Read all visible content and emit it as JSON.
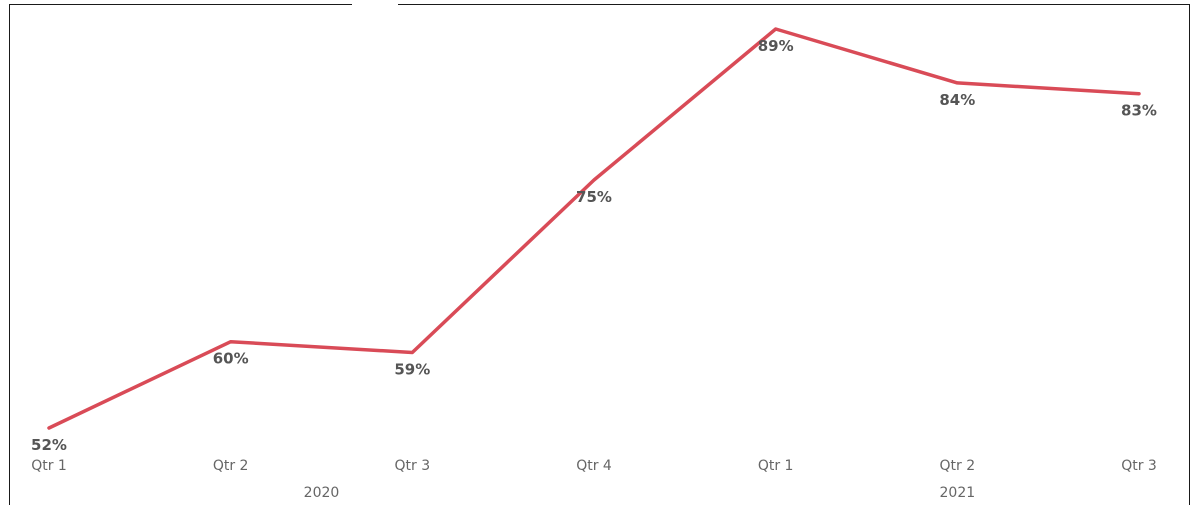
{
  "chart_data": {
    "type": "line",
    "x": [
      "Qtr 1",
      "Qtr 2",
      "Qtr 3",
      "Qtr 4",
      "Qtr 1",
      "Qtr 2",
      "Qtr 3"
    ],
    "x_groups": [
      {
        "label": "2020",
        "span": [
          0,
          3
        ]
      },
      {
        "label": "2021",
        "span": [
          4,
          6
        ]
      }
    ],
    "series": [
      {
        "values": [
          52,
          60,
          59,
          75,
          89,
          84,
          83
        ],
        "data_labels": [
          "52%",
          "60%",
          "59%",
          "75%",
          "89%",
          "84%",
          "83%"
        ],
        "color": "#d94b57"
      }
    ],
    "ylim": [
      52,
      89
    ],
    "grid": false,
    "legend": "none"
  }
}
